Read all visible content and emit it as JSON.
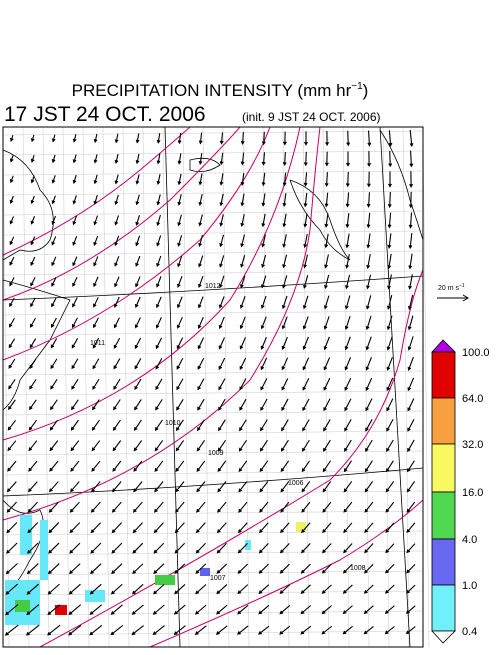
{
  "header": {
    "title_main": "PRECIPITATION INTENSITY (mm hr",
    "title_exp": "−1",
    "title_close": ")",
    "valid_time": "17 JST 24 OCT. 2006",
    "init_time": "(init. 9 JST 24 OCT. 2006)"
  },
  "wind_scale": {
    "label": "20 m s",
    "exp": "−1"
  },
  "colorbar": {
    "labels": [
      "100.0",
      "64.0",
      "32.0",
      "16.0",
      "4.0",
      "1.0",
      "0.4"
    ]
  },
  "isobar_labels": [
    "1012",
    "1011",
    "1010",
    "1009",
    "1008",
    "1007",
    "1006"
  ]
}
